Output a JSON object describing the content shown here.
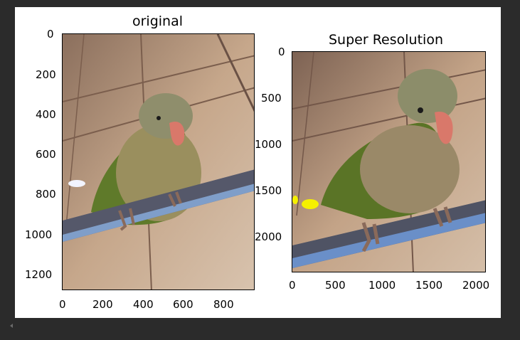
{
  "figure": {
    "plots": [
      {
        "title": "original",
        "image_name": "parrot-original",
        "yticks": [
          "0",
          "200",
          "400",
          "600",
          "800",
          "1000",
          "1200"
        ],
        "xticks": [
          "0",
          "200",
          "400",
          "600",
          "800"
        ]
      },
      {
        "title": "Super Resolution",
        "image_name": "parrot-super-resolution",
        "yticks": [
          "0",
          "500",
          "1000",
          "1500",
          "2000"
        ],
        "xticks": [
          "0",
          "500",
          "1000",
          "1500",
          "2000"
        ]
      }
    ]
  },
  "chart_data": [
    {
      "type": "image",
      "title": "original",
      "xlim": [
        0,
        960
      ],
      "ylim": [
        1280,
        0
      ],
      "xticks": [
        0,
        200,
        400,
        600,
        800
      ],
      "yticks": [
        0,
        200,
        400,
        600,
        800,
        1000,
        1200
      ]
    },
    {
      "type": "image",
      "title": "Super Resolution",
      "xlim": [
        0,
        2080
      ],
      "ylim": [
        2380,
        0
      ],
      "xticks": [
        0,
        500,
        1000,
        1500,
        2000
      ],
      "yticks": [
        0,
        500,
        1000,
        1500,
        2000
      ]
    }
  ],
  "colors": {
    "background": "#2b2b2b",
    "output_bg": "#ffffff",
    "tile_wall": "#c9ad90",
    "parrot_body": "#8a8a58",
    "parrot_green": "#5f7a2a",
    "beak": "#d9786a",
    "perch": "#5a5d6a",
    "perch_edge": "#6a90c8"
  },
  "icons": {
    "scroll_left": "triangle-left-icon"
  }
}
